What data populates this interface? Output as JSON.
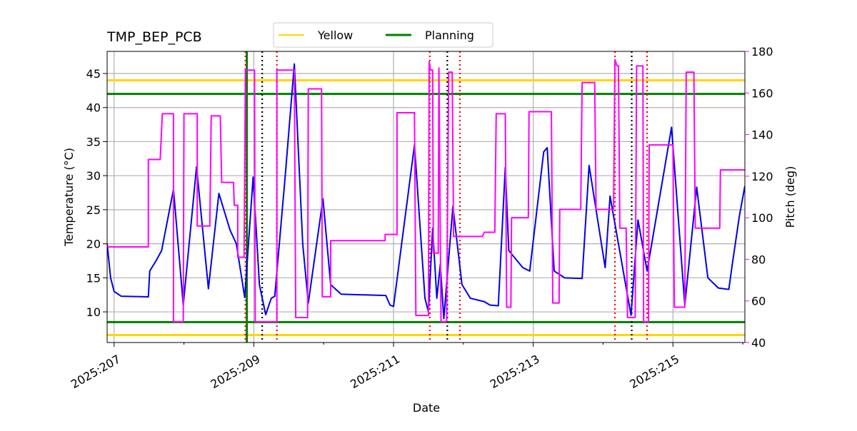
{
  "chart_data": {
    "type": "line",
    "title": "TMP_BEP_PCB",
    "xlabel": "Date",
    "ylabel": "Temperature (°C)",
    "y2label": "Pitch (deg)",
    "xlim": [
      206.9,
      216.03
    ],
    "ylim": [
      5.5,
      48.25
    ],
    "y2lim": [
      40,
      180
    ],
    "xticks": [
      {
        "value": 207,
        "label": "2025:207"
      },
      {
        "value": 209,
        "label": "2025:209"
      },
      {
        "value": 211,
        "label": "2025:211"
      },
      {
        "value": 213,
        "label": "2025:213"
      },
      {
        "value": 215,
        "label": "2025:215"
      }
    ],
    "xminorticks": [
      208,
      210,
      212,
      214,
      216
    ],
    "yticks": [
      10,
      15,
      20,
      25,
      30,
      35,
      40,
      45
    ],
    "y2ticks": [
      40,
      60,
      80,
      100,
      120,
      140,
      160,
      180
    ],
    "y2color": "#ff00ff",
    "grid": true,
    "legend": "top",
    "series": [
      {
        "color": "#0000ee",
        "axis": "y",
        "x": [
          206.9,
          206.95,
          207.0,
          207.1,
          207.49,
          207.51,
          207.6,
          207.68,
          207.85,
          207.99,
          208.18,
          208.35,
          208.5,
          208.66,
          208.75,
          208.87,
          208.99,
          209.08,
          209.17,
          209.25,
          209.3,
          209.45,
          209.58,
          209.7,
          209.78,
          209.99,
          210.1,
          210.25,
          210.89,
          210.95,
          211.0,
          211.3,
          211.45,
          211.5,
          211.56,
          211.62,
          211.67,
          211.72,
          211.85,
          211.98,
          212.1,
          212.3,
          212.38,
          212.5,
          212.6,
          212.65,
          212.85,
          212.95,
          213.15,
          213.2,
          213.3,
          213.45,
          213.7,
          213.8,
          214.03,
          214.1,
          214.4,
          214.5,
          214.63,
          214.98,
          215.17,
          215.34,
          215.5,
          215.65,
          215.8,
          215.85,
          215.95,
          216.03
        ],
        "values": [
          20,
          15,
          13,
          12.3,
          12.2,
          16,
          17.5,
          19,
          28,
          11,
          31.3,
          13.4,
          27.4,
          22,
          20,
          12.1,
          29.8,
          14,
          9.6,
          12,
          12.3,
          30,
          46.4,
          20,
          11.3,
          26.6,
          14,
          12.6,
          12.4,
          11,
          10.8,
          34.5,
          12,
          10,
          22.3,
          12,
          17,
          9,
          25.5,
          14,
          12,
          11.5,
          11,
          10.9,
          31.2,
          19,
          16.5,
          16,
          33.5,
          34.1,
          16,
          15,
          14.9,
          31.5,
          16.5,
          27,
          9.5,
          23.5,
          16,
          37.1,
          11,
          28.3,
          15,
          13.5,
          13.3,
          17,
          24,
          28.5
        ]
      },
      {
        "color": "#ff00ff",
        "axis": "y2",
        "x": [
          206.9,
          207.49,
          207.49,
          207.66,
          207.69,
          207.85,
          207.85,
          207.99,
          208.0,
          208.19,
          208.19,
          208.37,
          208.39,
          208.52,
          208.54,
          208.71,
          208.72,
          208.77,
          208.77,
          208.86,
          208.88,
          209.01,
          209.02,
          209.33,
          209.33,
          209.58,
          209.6,
          209.77,
          209.78,
          209.97,
          209.98,
          210.1,
          210.1,
          210.88,
          210.88,
          211.05,
          211.05,
          211.3,
          211.32,
          211.5,
          211.51,
          211.53,
          211.56,
          211.57,
          211.64,
          211.65,
          211.68,
          211.76,
          211.79,
          211.84,
          211.86,
          212.27,
          212.3,
          212.45,
          212.47,
          212.6,
          212.62,
          212.68,
          212.69,
          212.93,
          212.94,
          213.26,
          213.28,
          213.37,
          213.38,
          213.68,
          213.7,
          213.88,
          213.9,
          214.15,
          214.17,
          214.2,
          214.22,
          214.24,
          214.33,
          214.35,
          214.46,
          214.48,
          214.57,
          214.58,
          214.65,
          214.66,
          215.0,
          215.02,
          215.17,
          215.19,
          215.3,
          215.32,
          215.67,
          215.68,
          216.03
        ],
        "values": [
          86,
          86,
          128,
          128,
          150,
          150,
          50,
          50,
          150,
          150,
          96,
          96,
          149,
          149,
          117,
          117,
          106,
          106,
          81,
          81,
          171,
          171,
          50,
          50,
          171,
          171,
          52,
          52,
          162,
          162,
          62,
          62,
          89,
          89,
          92,
          92,
          150.5,
          150.5,
          53,
          53,
          175,
          171,
          171,
          83,
          83,
          172,
          50,
          50,
          170,
          170,
          91,
          91,
          93,
          93,
          150,
          150,
          57,
          57,
          100,
          100,
          151,
          151,
          59,
          59,
          104,
          104,
          165,
          165,
          104,
          104,
          176,
          173,
          173,
          95,
          95,
          52,
          52,
          173,
          173,
          50,
          50,
          135,
          135,
          57,
          57,
          170,
          170,
          95,
          95,
          123,
          123
        ]
      }
    ],
    "limit_lines": [
      {
        "name": "Yellow",
        "color": "#ffd700",
        "values": [
          44,
          6.6
        ]
      },
      {
        "name": "Planning",
        "color": "#008000",
        "values": [
          42,
          8.5
        ]
      }
    ],
    "vlines": [
      {
        "color": "#008000",
        "style": "solid",
        "x": [
          208.9
        ]
      },
      {
        "color": "#ff0000",
        "style": "dotted",
        "x": [
          208.88,
          209.33,
          211.52,
          211.95,
          214.17,
          214.63
        ]
      },
      {
        "color": "#000000",
        "style": "dotted",
        "x": [
          209.12,
          211.77,
          214.41
        ]
      }
    ]
  }
}
